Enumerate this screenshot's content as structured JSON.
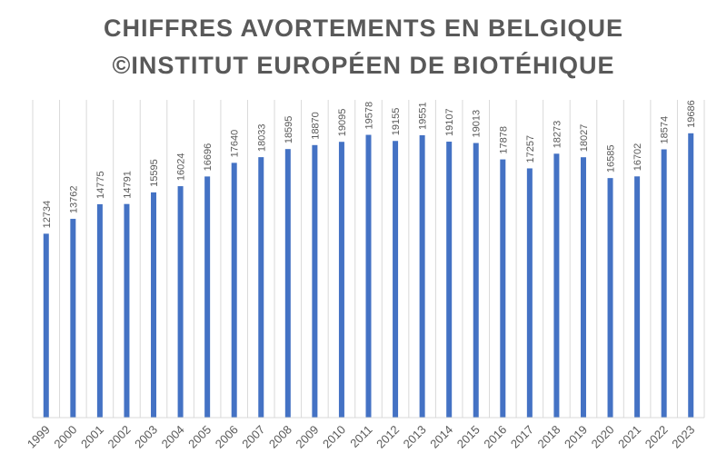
{
  "chart_data": {
    "type": "bar",
    "title": [
      "CHIFFRES AVORTEMENTS EN BELGIQUE",
      "©INSTITUT EUROPÉEN DE BIOTÉHIQUE"
    ],
    "categories": [
      "1999",
      "2000",
      "2001",
      "2002",
      "2003",
      "2004",
      "2005",
      "2006",
      "2007",
      "2008",
      "2009",
      "2010",
      "2011",
      "2012",
      "2013",
      "2014",
      "2015",
      "2016",
      "2017",
      "2018",
      "2019",
      "2020",
      "2021",
      "2022",
      "2023"
    ],
    "values": [
      12734,
      13762,
      14775,
      14791,
      15595,
      16024,
      16696,
      17640,
      18033,
      18595,
      18870,
      19095,
      19578,
      19155,
      19551,
      19107,
      19013,
      17878,
      17257,
      18273,
      18027,
      16585,
      16702,
      18574,
      19686
    ],
    "ylim": [
      0,
      22000
    ],
    "grid": "vertical",
    "bar_color": "#4472c4",
    "grid_color": "#d9d9d9",
    "text_color": "#595959",
    "data_labels": true,
    "legend": "none"
  }
}
